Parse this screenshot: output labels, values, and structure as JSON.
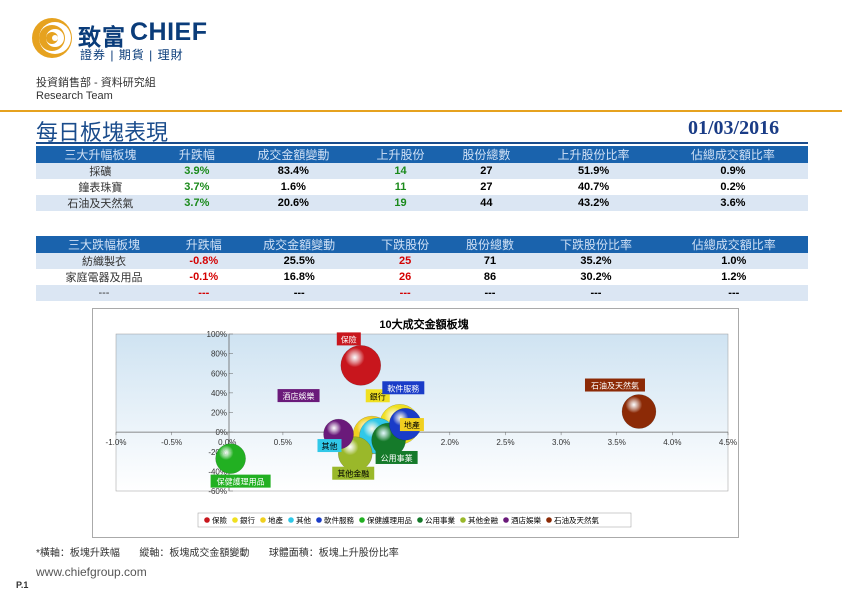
{
  "header": {
    "brand_cn": "致富",
    "brand_en": "CHIEF",
    "brand_sub": "證券 | 期貨 | 理財",
    "dept": "投資銷售部 - 資料研究組",
    "team": "Research Team",
    "title": "每日板塊表現",
    "date": "01/03/2016"
  },
  "colors": {
    "accent": "#e6a21f",
    "header_blue": "#1a63ad",
    "title_blue": "#1a4c8c",
    "row_shade": "#dbe6f3"
  },
  "top_table": {
    "headers": [
      "三大升幅板塊",
      "升跌幅",
      "成交金額變動",
      "上升股份",
      "股份總數",
      "上升股份比率",
      "佔總成交額比率"
    ],
    "rows": [
      [
        "採礦",
        "3.9%",
        "83.4%",
        "14",
        "27",
        "51.9%",
        "0.9%"
      ],
      [
        "鐘表珠寶",
        "3.7%",
        "1.6%",
        "11",
        "27",
        "40.7%",
        "0.2%"
      ],
      [
        "石油及天然氣",
        "3.7%",
        "20.6%",
        "19",
        "44",
        "43.2%",
        "3.6%"
      ]
    ]
  },
  "bottom_table": {
    "headers": [
      "三大跌幅板塊",
      "升跌幅",
      "成交金額變動",
      "下跌股份",
      "股份總數",
      "下跌股份比率",
      "佔總成交額比率"
    ],
    "rows": [
      [
        "紡織製衣",
        "-0.8%",
        "25.5%",
        "25",
        "71",
        "35.2%",
        "1.0%"
      ],
      [
        "家庭電器及用品",
        "-0.1%",
        "16.8%",
        "26",
        "86",
        "30.2%",
        "1.2%"
      ],
      [
        "---",
        "---",
        "---",
        "---",
        "---",
        "---",
        "---"
      ]
    ]
  },
  "chart_data": {
    "type": "bubble",
    "title": "10大成交金額板塊",
    "xlabel": "板塊升跌幅",
    "ylabel": "板塊成交金額變動",
    "size_label": "板塊上升股份比率",
    "xlim": [
      -1.0,
      4.5
    ],
    "ylim": [
      -60,
      100
    ],
    "x_ticks": [
      "-1.0%",
      "-0.5%",
      "0.0%",
      "0.5%",
      "1.0%",
      "1.5%",
      "2.0%",
      "2.5%",
      "3.0%",
      "3.5%",
      "4.0%",
      "4.5%"
    ],
    "y_ticks": [
      "100%",
      "80%",
      "60%",
      "40%",
      "20%",
      "0%",
      "-20%",
      "-40%",
      "-60%"
    ],
    "series": [
      {
        "name": "保險",
        "x": 1.2,
        "y": 68,
        "size": 20,
        "color": "#c8161d"
      },
      {
        "name": "銀行",
        "x": 1.55,
        "y": 8,
        "size": 20,
        "color": "#f0e020"
      },
      {
        "name": "地產",
        "x": 1.3,
        "y": -3,
        "size": 19,
        "color": "#f0d020"
      },
      {
        "name": "其他",
        "x": 1.35,
        "y": -4,
        "size": 18,
        "color": "#30c8e8"
      },
      {
        "name": "軟件服務",
        "x": 1.6,
        "y": 8,
        "size": 16,
        "color": "#1a3cc8"
      },
      {
        "name": "保健護理用品",
        "x": 0.03,
        "y": -27,
        "size": 15,
        "color": "#22b022"
      },
      {
        "name": "公用事業",
        "x": 1.45,
        "y": -8,
        "size": 17,
        "color": "#157a2a"
      },
      {
        "name": "其他金融",
        "x": 1.15,
        "y": -22,
        "size": 17,
        "color": "#9ab82a"
      },
      {
        "name": "酒店娛樂",
        "x": 1.0,
        "y": -2,
        "size": 15,
        "color": "#6a1a7a"
      },
      {
        "name": "石油及天然氣",
        "x": 3.7,
        "y": 21,
        "size": 17,
        "color": "#8c2a06"
      }
    ]
  },
  "footnote": {
    "asterisk": "*",
    "x": "橫軸：板塊升跌幅",
    "y": "縱軸：板塊成交金額變動",
    "size": "球體面積：板塊上升股份比率"
  },
  "footer": {
    "url": "www.chiefgroup.com",
    "page": "P.1"
  }
}
